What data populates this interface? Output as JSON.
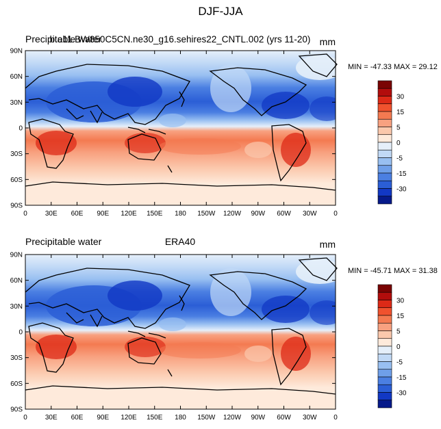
{
  "figure": {
    "title": "DJF-JJA"
  },
  "panels": [
    {
      "left_title": "Precipitable water",
      "center_title": "b.e11.BW850C5CN.ne30_g16.sehires22_CNTL.002 (yrs 11-20)",
      "units": "mm",
      "stats": "MIN = -47.33 MAX =  29.12"
    },
    {
      "left_title": "Precipitable water",
      "center_title": "ERA40",
      "units": "mm",
      "stats": "MIN = -45.71 MAX =  31.38"
    }
  ],
  "axes": {
    "lat_ticks": [
      "90N",
      "60N",
      "30N",
      "0",
      "30S",
      "60S",
      "90S"
    ],
    "lon_ticks": [
      "0",
      "30E",
      "60E",
      "90E",
      "120E",
      "150E",
      "180",
      "150W",
      "120W",
      "90W",
      "60W",
      "30W",
      "0"
    ]
  },
  "colorbar": {
    "labels": [
      "30",
      "15",
      "5",
      "0",
      "-5",
      "-15",
      "-30"
    ],
    "colors": [
      "#7a0403",
      "#b20d0c",
      "#dd2a17",
      "#f0522e",
      "#f47a51",
      "#f8a180",
      "#fbc8ac",
      "#feeadb",
      "#e5effa",
      "#c1d9f6",
      "#98bff1",
      "#6f9fe9",
      "#4b7fe2",
      "#2b5ed6",
      "#1238c4",
      "#061a8a"
    ]
  },
  "chart_data": [
    {
      "type": "heatmap",
      "title": "DJF-JJA",
      "left_title": "Precipitable water",
      "center_title": "b.e11.BW850C5CN.ne30_g16.sehires22_CNTL.002 (yrs 11-20)",
      "units": "mm",
      "x_ticks": [
        "0",
        "30E",
        "60E",
        "90E",
        "120E",
        "150E",
        "180",
        "150W",
        "120W",
        "90W",
        "60W",
        "30W",
        "0"
      ],
      "y_ticks": [
        "90N",
        "60N",
        "30N",
        "0",
        "30S",
        "60S",
        "90S"
      ],
      "colorbar_levels": [
        30,
        15,
        5,
        0,
        -5,
        -15,
        -30
      ],
      "min": -47.33,
      "max": 29.12
    },
    {
      "type": "heatmap",
      "title": "DJF-JJA",
      "left_title": "Precipitable water",
      "center_title": "ERA40",
      "units": "mm",
      "x_ticks": [
        "0",
        "30E",
        "60E",
        "90E",
        "120E",
        "150E",
        "180",
        "150W",
        "120W",
        "90W",
        "60W",
        "30W",
        "0"
      ],
      "y_ticks": [
        "90N",
        "60N",
        "30N",
        "0",
        "30S",
        "60S",
        "90S"
      ],
      "colorbar_levels": [
        30,
        15,
        5,
        0,
        -5,
        -15,
        -30
      ],
      "min": -45.71,
      "max": 31.38
    }
  ]
}
